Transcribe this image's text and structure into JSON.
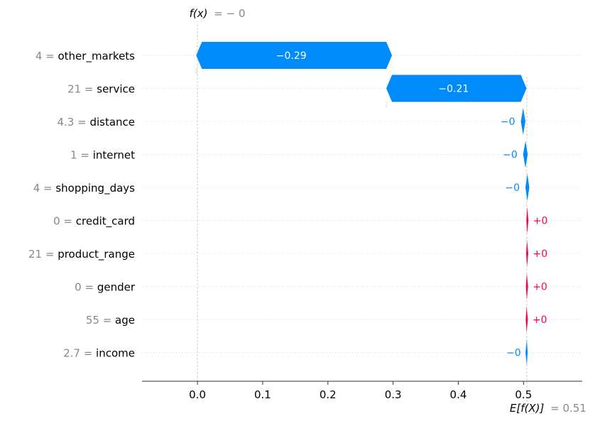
{
  "chart_data": {
    "type": "waterfall",
    "top_label": {
      "fx": "f(x)",
      "value": "= − 0"
    },
    "bottom_label": {
      "efx": "E[f(X)]",
      "value": "= 0.51"
    },
    "base_value": 0.505,
    "final_value": 0.0,
    "xlim": [
      -0.085,
      0.59
    ],
    "x_ticks": [
      0.0,
      0.1,
      0.2,
      0.3,
      0.4,
      0.5
    ],
    "x_tick_labels": [
      "0.0",
      "0.1",
      "0.2",
      "0.3",
      "0.4",
      "0.5"
    ],
    "colors": {
      "negative": "#008bfb",
      "positive": "#ff0051",
      "grey": "#888888"
    },
    "features": [
      {
        "value": "4",
        "name": "other_markets",
        "shap": -0.2915,
        "label": "−0.29"
      },
      {
        "value": "21",
        "name": "service",
        "shap": -0.2063,
        "label": "−0.21"
      },
      {
        "value": "4.3",
        "name": "distance",
        "shap": -0.0035,
        "label": "−0"
      },
      {
        "value": "1",
        "name": "internet",
        "shap": -0.0035,
        "label": "−0"
      },
      {
        "value": "4",
        "name": "shopping_days",
        "shap": -0.003,
        "label": "−0"
      },
      {
        "value": "0",
        "name": "credit_card",
        "shap": 0.0003,
        "label": "+0"
      },
      {
        "value": "21",
        "name": "product_range",
        "shap": 0.0003,
        "label": "+0"
      },
      {
        "value": "0",
        "name": "gender",
        "shap": 0.0003,
        "label": "+0"
      },
      {
        "value": "55",
        "name": "age",
        "shap": 0.0003,
        "label": "+0"
      },
      {
        "value": "2.7",
        "name": "income",
        "shap": -0.0003,
        "label": "−0"
      }
    ]
  }
}
